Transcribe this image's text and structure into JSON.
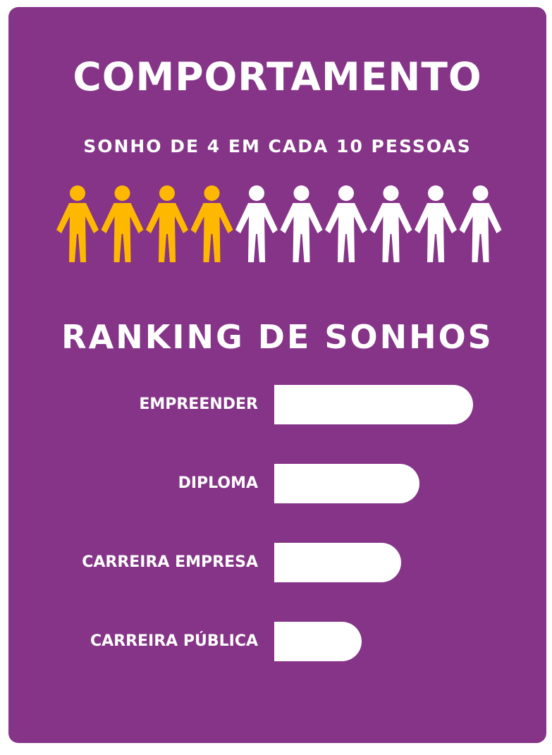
{
  "title": "COMPORTAMENTO",
  "subtitle": "SONHO DE 4 EM CADA 10 PESSOAS",
  "people": {
    "total": 10,
    "highlighted": 4,
    "highlight_color": "#FFB800",
    "base_color": "#FFFFFF",
    "icon": "person-icon"
  },
  "section_title": "RANKING DE SONHOS",
  "colors": {
    "background": "#853488",
    "bar": "#FFFFFF",
    "text": "#FFFFFF"
  },
  "chart_data": {
    "type": "bar",
    "orientation": "horizontal",
    "title": "RANKING DE SONHOS",
    "categories": [
      "EMPREENDER",
      "DIPLOMA",
      "CARREIRA EMPRESA",
      "CARREIRA PÚBLICA"
    ],
    "values": [
      100,
      73,
      64,
      44
    ],
    "value_scale": "relative (longest bar = 100)",
    "axis_visible": false,
    "grid": false
  }
}
